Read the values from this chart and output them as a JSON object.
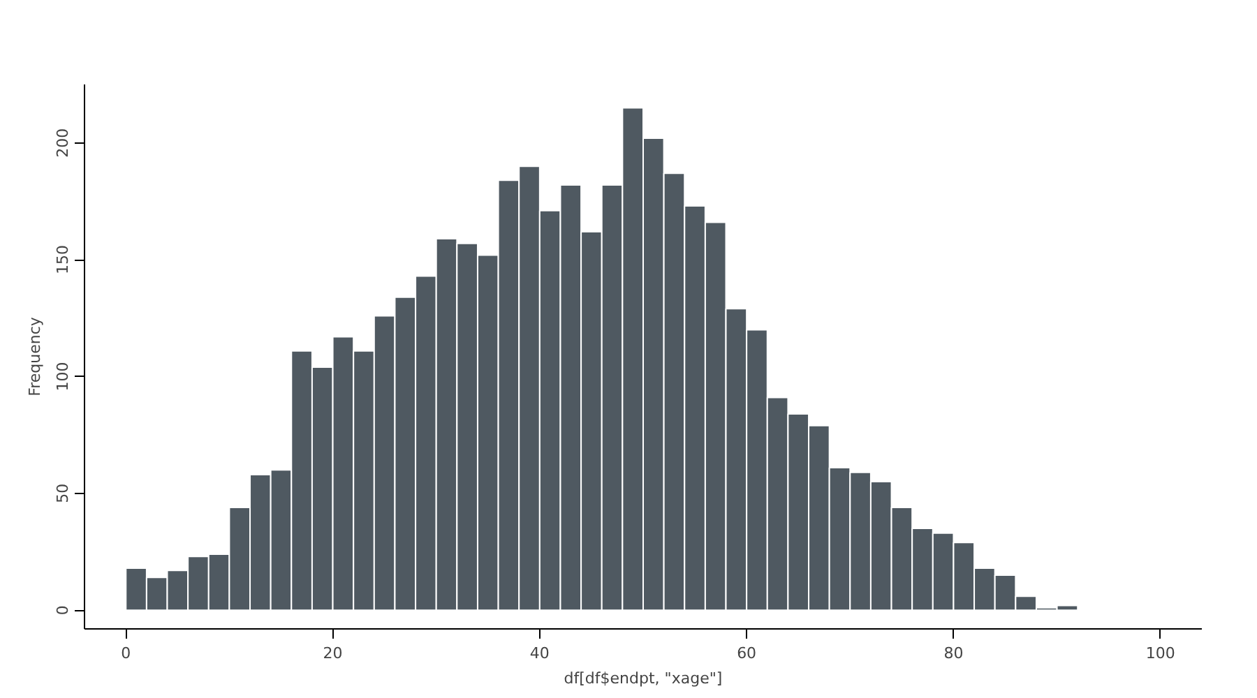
{
  "chart_data": {
    "type": "histogram",
    "xlabel": "df[df$endpt, \"xage\"]",
    "ylabel": "Frequency",
    "bins": [
      0,
      2,
      4,
      6,
      8,
      10,
      12,
      14,
      16,
      18,
      20,
      22,
      24,
      26,
      28,
      30,
      32,
      34,
      36,
      38,
      40,
      42,
      44,
      46,
      48,
      50,
      52,
      54,
      56,
      58,
      60,
      62,
      64,
      66,
      68,
      70,
      72,
      74,
      76,
      78,
      80,
      82,
      84,
      86,
      88,
      90,
      92
    ],
    "values": [
      18,
      14,
      17,
      23,
      24,
      44,
      58,
      60,
      111,
      104,
      117,
      111,
      126,
      134,
      143,
      159,
      157,
      152,
      184,
      190,
      171,
      182,
      162,
      182,
      215,
      202,
      187,
      173,
      166,
      129,
      120,
      91,
      84,
      79,
      61,
      59,
      55,
      44,
      35,
      33,
      29,
      18,
      15,
      6,
      1,
      2
    ],
    "color": "#4f5961",
    "xlim": [
      -4,
      104
    ],
    "ylim": [
      -8,
      225
    ],
    "xticks": [
      0,
      20,
      40,
      60,
      80,
      100
    ],
    "yticks": [
      0,
      50,
      100,
      150,
      200
    ],
    "grid": false
  }
}
